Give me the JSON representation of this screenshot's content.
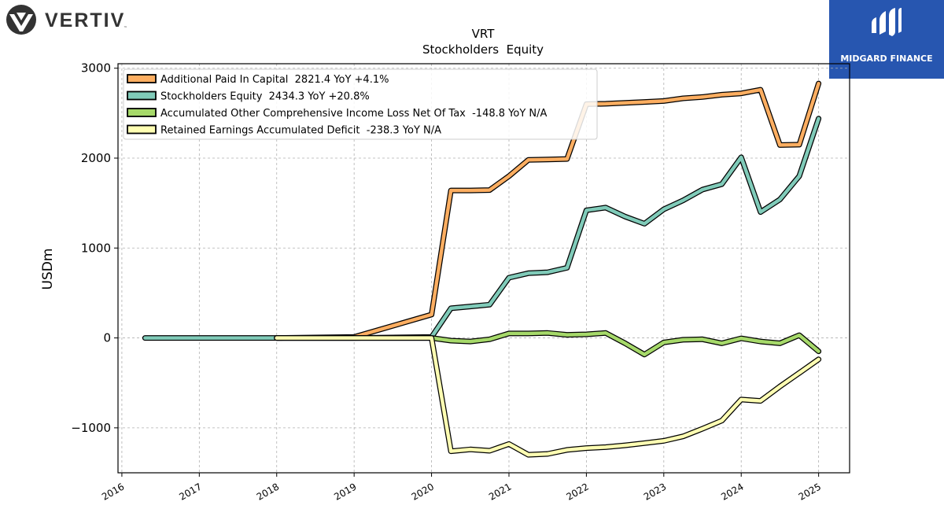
{
  "branding": {
    "left_logo_text": "VERTIV",
    "left_logo_tm": "™",
    "right_logo_text": "MIDGARD FINANCE",
    "right_logo_color": "#2756b0"
  },
  "chart_data": {
    "type": "line",
    "title": "VRT",
    "subtitle": "Stockholders  Equity",
    "xlabel": "",
    "ylabel": "USDm",
    "xlim": [
      2015.95,
      2025.4
    ],
    "ylim": [
      -1500,
      3050
    ],
    "grid": true,
    "legend_position": "top-left",
    "x_ticks": [
      2016,
      2017,
      2018,
      2019,
      2020,
      2021,
      2022,
      2023,
      2024,
      2025
    ],
    "x_tick_labels": [
      "2016",
      "2017",
      "2018",
      "2019",
      "2020",
      "2021",
      "2022",
      "2023",
      "2024",
      "2025"
    ],
    "y_ticks": [
      -1000,
      0,
      1000,
      2000,
      3000
    ],
    "y_tick_labels": [
      "−1000",
      "0",
      "1000",
      "2000",
      "3000"
    ],
    "series": [
      {
        "name": "Additional Paid In Capital  2821.4 YoY +4.1%",
        "color": "#fdae61",
        "x": [
          2018.0,
          2019.0,
          2020.0,
          2020.25,
          2020.5,
          2020.75,
          2021.0,
          2021.25,
          2021.5,
          2021.75,
          2022.0,
          2022.25,
          2022.5,
          2022.75,
          2023.0,
          2023.25,
          2023.5,
          2023.75,
          2024.0,
          2024.25,
          2024.5,
          2024.75,
          2025.0
        ],
        "y": [
          0,
          10,
          260,
          1640,
          1640,
          1645,
          1800,
          1980,
          1985,
          1990,
          2600,
          2605,
          2615,
          2625,
          2635,
          2665,
          2680,
          2705,
          2720,
          2760,
          2145,
          2150,
          2830
        ]
      },
      {
        "name": "Stockholders Equity  2434.3 YoY +20.8%",
        "color": "#80cbb9",
        "x": [
          2016.3,
          2018.0,
          2019.0,
          2020.0,
          2020.25,
          2020.5,
          2020.75,
          2021.0,
          2021.25,
          2021.5,
          2021.75,
          2022.0,
          2022.25,
          2022.5,
          2022.75,
          2023.0,
          2023.25,
          2023.5,
          2023.75,
          2024.0,
          2024.25,
          2024.5,
          2024.75,
          2025.0
        ],
        "y": [
          0,
          0,
          0,
          10,
          330,
          350,
          370,
          670,
          720,
          730,
          780,
          1420,
          1450,
          1350,
          1270,
          1430,
          1530,
          1650,
          1710,
          2010,
          1400,
          1540,
          1800,
          2440
        ]
      },
      {
        "name": "Accumulated Other Comprehensive Income Loss Net Of Tax  -148.8 YoY N/A",
        "color": "#a6d96a",
        "x": [
          2018.0,
          2019.0,
          2020.0,
          2020.25,
          2020.5,
          2020.75,
          2021.0,
          2021.25,
          2021.5,
          2021.75,
          2022.0,
          2022.25,
          2022.5,
          2022.75,
          2023.0,
          2023.25,
          2023.5,
          2023.75,
          2024.0,
          2024.25,
          2024.5,
          2024.75,
          2025.0
        ],
        "y": [
          0,
          0,
          0,
          -30,
          -40,
          -15,
          50,
          50,
          55,
          35,
          40,
          55,
          -60,
          -185,
          -50,
          -20,
          -15,
          -60,
          -5,
          -40,
          -60,
          30,
          -149
        ]
      },
      {
        "name": "Retained Earnings Accumulated Deficit  -238.3 YoY N/A",
        "color": "#ffffb3",
        "x": [
          2018.0,
          2019.0,
          2020.0,
          2020.25,
          2020.5,
          2020.75,
          2021.0,
          2021.25,
          2021.5,
          2021.75,
          2022.0,
          2022.25,
          2022.5,
          2022.75,
          2023.0,
          2023.25,
          2023.5,
          2023.75,
          2024.0,
          2024.25,
          2024.5,
          2024.75,
          2025.0
        ],
        "y": [
          0,
          0,
          0,
          -1260,
          -1240,
          -1255,
          -1180,
          -1300,
          -1290,
          -1245,
          -1225,
          -1215,
          -1195,
          -1170,
          -1145,
          -1095,
          -1010,
          -920,
          -685,
          -700,
          -540,
          -390,
          -238
        ]
      }
    ]
  }
}
